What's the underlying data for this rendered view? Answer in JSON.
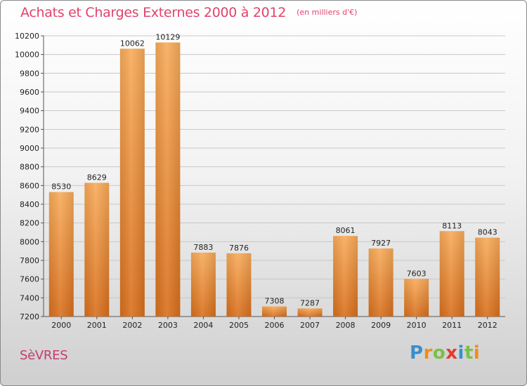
{
  "header": {
    "title": "Achats et Charges Externes 2000 à 2012",
    "unit": "(en milliers d'€)"
  },
  "footer": {
    "city": "SèVRES",
    "logo_text": "Proxiti"
  },
  "colors": {
    "bar_light": "#f8ab5a",
    "bar_dark": "#d86f1c",
    "title": "#e0436b",
    "city": "#c73a6f",
    "logo_letters": [
      "#3a8fd0",
      "#f08c1c",
      "#7cc043",
      "#e23b2e",
      "#3a8fd0",
      "#7cc043",
      "#f08c1c"
    ]
  },
  "chart_data": {
    "type": "bar",
    "title": "Achats et Charges Externes 2000 à 2012",
    "subtitle": "(en milliers d'€)",
    "categories": [
      "2000",
      "2001",
      "2002",
      "2003",
      "2004",
      "2005",
      "2006",
      "2007",
      "2008",
      "2009",
      "2010",
      "2011",
      "2012"
    ],
    "values": [
      8530,
      8629,
      10062,
      10129,
      7883,
      7876,
      7308,
      7287,
      8061,
      7927,
      7603,
      8113,
      8043
    ],
    "ylim": [
      7200,
      10200
    ],
    "yticks": [
      7200,
      7400,
      7600,
      7800,
      8000,
      8200,
      8400,
      8600,
      8800,
      9000,
      9200,
      9400,
      9600,
      9800,
      10000,
      10200
    ],
    "grid": true,
    "data_labels": true
  }
}
